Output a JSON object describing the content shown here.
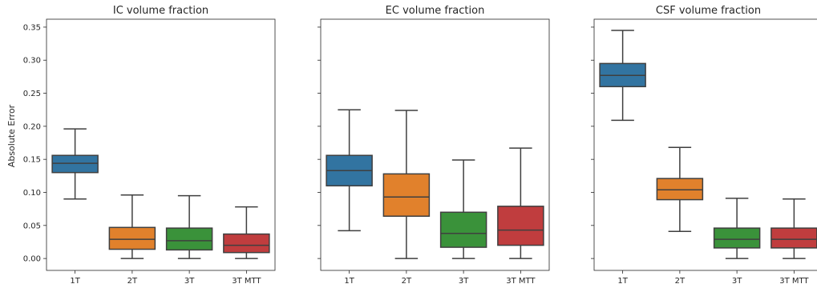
{
  "figure": {
    "ylabel": "Absolute Error"
  },
  "chart_data": {
    "type": "box",
    "categories": [
      "1T",
      "2T",
      "3T",
      "3T MTT"
    ],
    "colors": [
      "#3274a1",
      "#e1812c",
      "#3a923a",
      "#c03d3e"
    ],
    "ylim": [
      -0.018,
      0.362
    ],
    "yticks": [
      0.0,
      0.05,
      0.1,
      0.15,
      0.2,
      0.25,
      0.3,
      0.35
    ],
    "ytick_labels": [
      "0.00",
      "0.05",
      "0.10",
      "0.15",
      "0.20",
      "0.25",
      "0.30",
      "0.35"
    ],
    "ylabel": "Absolute Error",
    "sharey": true,
    "panels": [
      {
        "title": "IC volume fraction",
        "boxes": [
          {
            "category": "1T",
            "whislo": 0.09,
            "q1": 0.13,
            "med": 0.144,
            "q3": 0.156,
            "whishi": 0.196
          },
          {
            "category": "2T",
            "whislo": 0.0,
            "q1": 0.014,
            "med": 0.029,
            "q3": 0.047,
            "whishi": 0.096
          },
          {
            "category": "3T",
            "whislo": 0.0,
            "q1": 0.013,
            "med": 0.027,
            "q3": 0.046,
            "whishi": 0.095
          },
          {
            "category": "3T MTT",
            "whislo": 0.0,
            "q1": 0.009,
            "med": 0.02,
            "q3": 0.037,
            "whishi": 0.078
          }
        ]
      },
      {
        "title": "EC volume fraction",
        "boxes": [
          {
            "category": "1T",
            "whislo": 0.042,
            "q1": 0.11,
            "med": 0.133,
            "q3": 0.156,
            "whishi": 0.225
          },
          {
            "category": "2T",
            "whislo": 0.0,
            "q1": 0.064,
            "med": 0.093,
            "q3": 0.128,
            "whishi": 0.224
          },
          {
            "category": "3T",
            "whislo": 0.0,
            "q1": 0.017,
            "med": 0.038,
            "q3": 0.07,
            "whishi": 0.149
          },
          {
            "category": "3T MTT",
            "whislo": 0.0,
            "q1": 0.02,
            "med": 0.043,
            "q3": 0.079,
            "whishi": 0.167
          }
        ]
      },
      {
        "title": "CSF volume fraction",
        "boxes": [
          {
            "category": "1T",
            "whislo": 0.209,
            "q1": 0.26,
            "med": 0.277,
            "q3": 0.295,
            "whishi": 0.345
          },
          {
            "category": "2T",
            "whislo": 0.041,
            "q1": 0.089,
            "med": 0.104,
            "q3": 0.121,
            "whishi": 0.168
          },
          {
            "category": "3T",
            "whislo": 0.0,
            "q1": 0.016,
            "med": 0.029,
            "q3": 0.046,
            "whishi": 0.091
          },
          {
            "category": "3T MTT",
            "whislo": 0.0,
            "q1": 0.016,
            "med": 0.029,
            "q3": 0.046,
            "whishi": 0.09
          }
        ]
      }
    ]
  }
}
